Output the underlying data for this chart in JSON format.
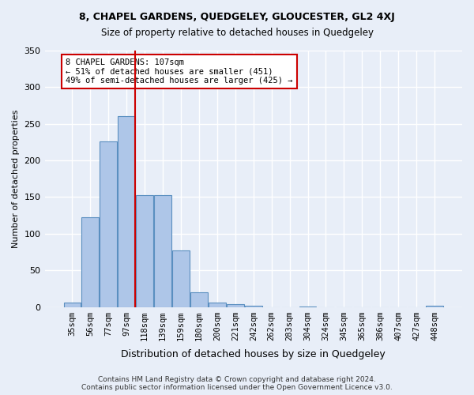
{
  "title_line1": "8, CHAPEL GARDENS, QUEDGELEY, GLOUCESTER, GL2 4XJ",
  "title_line2": "Size of property relative to detached houses in Quedgeley",
  "xlabel": "Distribution of detached houses by size in Quedgeley",
  "ylabel": "Number of detached properties",
  "bar_labels": [
    "35sqm",
    "56sqm",
    "77sqm",
    "97sqm",
    "118sqm",
    "139sqm",
    "159sqm",
    "180sqm",
    "200sqm",
    "221sqm",
    "242sqm",
    "262sqm",
    "283sqm",
    "304sqm",
    "324sqm",
    "345sqm",
    "365sqm",
    "386sqm",
    "407sqm",
    "427sqm",
    "448sqm"
  ],
  "bar_values": [
    6,
    122,
    226,
    260,
    153,
    153,
    77,
    20,
    6,
    4,
    2,
    0,
    0,
    1,
    0,
    0,
    0,
    0,
    0,
    0,
    2
  ],
  "bar_color": "#aec6e8",
  "bar_edge_color": "#5a8fc0",
  "bg_color": "#e8eef8",
  "grid_color": "#ffffff",
  "vline_x": 107,
  "vline_color": "#cc0000",
  "annotation_text": "8 CHAPEL GARDENS: 107sqm\n← 51% of detached houses are smaller (451)\n49% of semi-detached houses are larger (425) →",
  "annotation_box_color": "#ffffff",
  "annotation_box_edge": "#cc0000",
  "ylim": [
    0,
    350
  ],
  "yticks": [
    0,
    50,
    100,
    150,
    200,
    250,
    300,
    350
  ],
  "footer_line1": "Contains HM Land Registry data © Crown copyright and database right 2024.",
  "footer_line2": "Contains public sector information licensed under the Open Government Licence v3.0.",
  "bin_width": 21
}
